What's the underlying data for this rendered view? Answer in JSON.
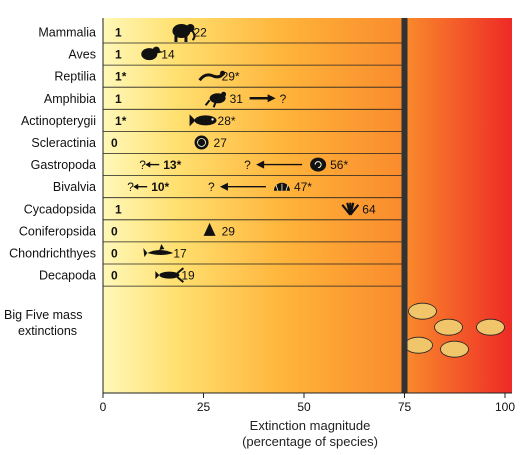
{
  "chart_data": {
    "type": "bar",
    "xlabel": "Extinction magnitude",
    "xlabel_sub": "(percentage of species)",
    "xlim": [
      0,
      100
    ],
    "xticks": [
      "0",
      "25",
      "50",
      "75",
      "100"
    ],
    "gradient_colors": [
      "#fff8b8",
      "#ffe070",
      "#ffb33a",
      "#f98a2c",
      "#ee2a26"
    ],
    "threshold": 75,
    "threshold_color": "#333333",
    "categories": [
      {
        "name": "Mammalia",
        "observed": 1,
        "observed_label": "1",
        "projected": 22,
        "projected_label": "22",
        "arrow": false,
        "icon": "mammoth-icon"
      },
      {
        "name": "Aves",
        "observed": 1,
        "observed_label": "1",
        "projected": 14,
        "projected_label": "14",
        "arrow": false,
        "icon": "dodo-icon"
      },
      {
        "name": "Reptilia",
        "observed": 1,
        "observed_label": "1*",
        "projected": 29,
        "projected_label": "29*",
        "arrow": false,
        "icon": "lizard-icon"
      },
      {
        "name": "Amphibia",
        "observed": 1,
        "observed_label": "1",
        "projected": 31,
        "projected_label": "31",
        "arrow": true,
        "arrow_label": "?",
        "arrow_dir": "right",
        "icon": "frog-icon"
      },
      {
        "name": "Actinopterygii",
        "observed": 1,
        "observed_label": "1*",
        "projected": 28,
        "projected_label": "28*",
        "arrow": false,
        "icon": "fish-icon"
      },
      {
        "name": "Scleractinia",
        "observed": 0,
        "observed_label": "0",
        "projected": 27,
        "projected_label": "27",
        "arrow": false,
        "icon": "coral-icon"
      },
      {
        "name": "Gastropoda",
        "observed": 13,
        "observed_label": "13*",
        "projected": 56,
        "projected_label": "56*",
        "arrow": true,
        "arrow_label": "?",
        "arrow_dir": "left",
        "obs_arrow": true,
        "icon": "snail-icon"
      },
      {
        "name": "Bivalvia",
        "observed": 10,
        "observed_label": "10*",
        "projected": 47,
        "projected_label": "47*",
        "arrow": true,
        "arrow_label": "?",
        "arrow_dir": "left",
        "obs_arrow": true,
        "icon": "clam-icon"
      },
      {
        "name": "Cycadopsida",
        "observed": 1,
        "observed_label": "1",
        "projected": 64,
        "projected_label": "64",
        "arrow": false,
        "icon": "cycad-icon"
      },
      {
        "name": "Coniferopsida",
        "observed": 0,
        "observed_label": "0",
        "projected": 29,
        "projected_label": "29",
        "arrow": false,
        "icon": "conifer-icon"
      },
      {
        "name": "Chondrichthyes",
        "observed": 0,
        "observed_label": "0",
        "projected": 17,
        "projected_label": "17",
        "arrow": false,
        "icon": "shark-icon"
      },
      {
        "name": "Decapoda",
        "observed": 0,
        "observed_label": "0",
        "projected": 19,
        "projected_label": "19",
        "arrow": false,
        "icon": "lobster-icon"
      }
    ],
    "big_five_label_1": "Big Five mass",
    "big_five_label_2": "extinctions"
  }
}
